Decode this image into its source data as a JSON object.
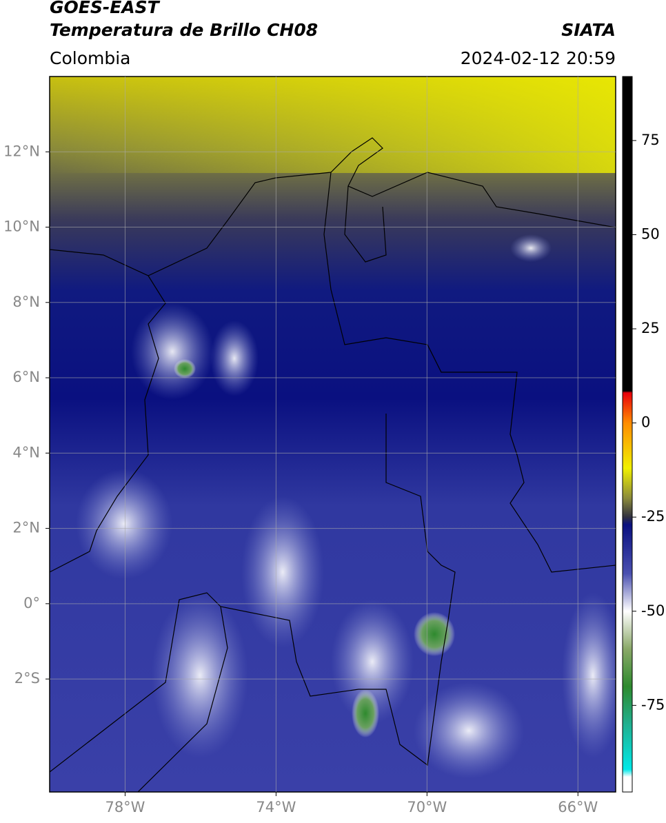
{
  "header": {
    "title": "GOES-EAST",
    "subtitle": "Temperatura de Brillo CH08",
    "source": "SIATA",
    "region": "Colombia",
    "datetime": "2024-02-12 20:59"
  },
  "map": {
    "xlim": [
      -80,
      -65
    ],
    "ylim": [
      -5,
      14
    ],
    "xticks": [
      {
        "value": -78,
        "label": "78°W"
      },
      {
        "value": -74,
        "label": "74°W"
      },
      {
        "value": -70,
        "label": "70°W"
      },
      {
        "value": -66,
        "label": "66°W"
      }
    ],
    "yticks": [
      {
        "value": 12,
        "label": "12°N"
      },
      {
        "value": 10,
        "label": "10°N"
      },
      {
        "value": 8,
        "label": "8°N"
      },
      {
        "value": 6,
        "label": "6°N"
      },
      {
        "value": 4,
        "label": "4°N"
      },
      {
        "value": 2,
        "label": "2°N"
      },
      {
        "value": 0,
        "label": "0°"
      },
      {
        "value": -2,
        "label": "2°S"
      }
    ],
    "grid": true
  },
  "colorbar": {
    "clim": [
      -98,
      92
    ],
    "ticks": [
      75,
      50,
      25,
      0,
      -25,
      -50,
      -75
    ],
    "colormap": [
      {
        "value": 92,
        "color": "#000000"
      },
      {
        "value": 8.5,
        "color": "#000000"
      },
      {
        "value": 8,
        "color": "#e8000b"
      },
      {
        "value": 0,
        "color": "#ff8c00"
      },
      {
        "value": -12,
        "color": "#f0f000"
      },
      {
        "value": -20,
        "color": "#8a8a3a"
      },
      {
        "value": -25,
        "color": "#303040"
      },
      {
        "value": -27,
        "color": "#0a1080"
      },
      {
        "value": -40,
        "color": "#4a50b0"
      },
      {
        "value": -50,
        "color": "#ffffff"
      },
      {
        "value": -60,
        "color": "#8aa868"
      },
      {
        "value": -70,
        "color": "#2e8a2e"
      },
      {
        "value": -80,
        "color": "#20b090"
      },
      {
        "value": -92,
        "color": "#00e8e8"
      },
      {
        "value": -94,
        "color": "#ffffff"
      },
      {
        "value": -98,
        "color": "#ffffff"
      }
    ]
  }
}
